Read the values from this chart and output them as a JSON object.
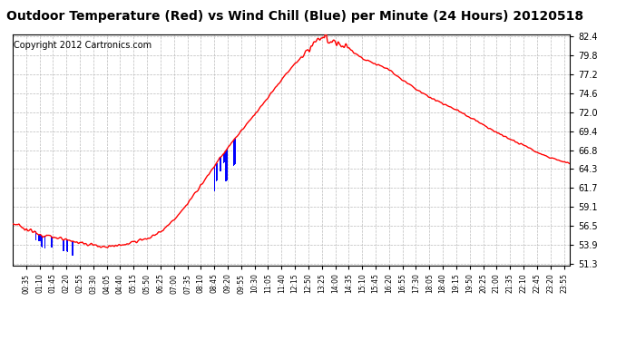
{
  "title": "Outdoor Temperature (Red) vs Wind Chill (Blue) per Minute (24 Hours) 20120518",
  "copyright": "Copyright 2012 Cartronics.com",
  "yticks": [
    51.3,
    53.9,
    56.5,
    59.1,
    61.7,
    64.3,
    66.8,
    69.4,
    72.0,
    74.6,
    77.2,
    79.8,
    82.4
  ],
  "ymin": 51.3,
  "ymax": 82.4,
  "xtick_labels": [
    "00:35",
    "01:10",
    "01:45",
    "02:20",
    "02:55",
    "03:30",
    "04:05",
    "04:40",
    "05:15",
    "05:50",
    "06:25",
    "07:00",
    "07:35",
    "08:10",
    "08:45",
    "09:20",
    "09:55",
    "10:30",
    "11:05",
    "11:40",
    "12:15",
    "12:50",
    "13:25",
    "14:00",
    "14:35",
    "15:10",
    "15:45",
    "16:20",
    "16:55",
    "17:30",
    "18:05",
    "18:40",
    "19:15",
    "19:50",
    "20:25",
    "21:00",
    "21:35",
    "22:10",
    "22:45",
    "23:20",
    "23:55"
  ],
  "bg_color": "#ffffff",
  "plot_bg_color": "#ffffff",
  "grid_color": "#bbbbbb",
  "line_color_red": "#ff0000",
  "bar_color_blue": "#0000ff",
  "title_fontsize": 10,
  "copyright_fontsize": 7
}
